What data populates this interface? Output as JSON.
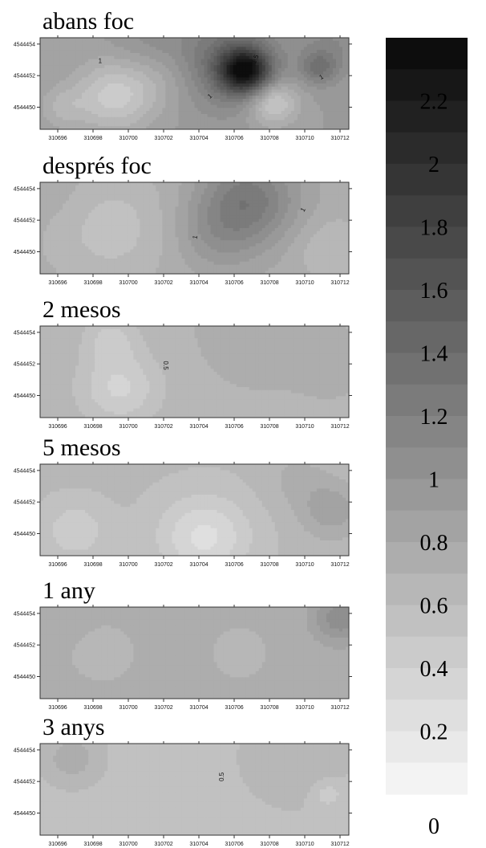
{
  "chart_data": {
    "type": "heatmap",
    "x_ticks": [
      "310696",
      "310698",
      "310700",
      "310702",
      "310704",
      "310706",
      "310708",
      "310710",
      "310712"
    ],
    "y_ticks": [
      "4544454",
      "4544452",
      "4544450"
    ],
    "colorbar": {
      "min": 0,
      "max": 2.4,
      "step": 0.1,
      "tick_labels": [
        "2.2",
        "2",
        "1.8",
        "1.6",
        "1.4",
        "1.2",
        "1",
        "0.8",
        "0.6",
        "0.4",
        "0.2",
        "0"
      ],
      "tick_values": [
        2.2,
        2.0,
        1.8,
        1.6,
        1.4,
        1.2,
        1.0,
        0.8,
        0.6,
        0.4,
        0.2,
        0.0
      ]
    },
    "panels": [
      {
        "title": "abans foc",
        "base": 0.9,
        "blobs": [
          {
            "x": 310706.6,
            "y": 4544452.3,
            "r": 1.4,
            "v": 1.25
          },
          {
            "x": 310705.5,
            "y": 4544452.9,
            "r": 3.0,
            "v": 0.45
          },
          {
            "x": 310710.8,
            "y": 4544452.5,
            "r": 1.0,
            "v": 0.35
          },
          {
            "x": 310711.5,
            "y": 4544453.8,
            "r": 2.0,
            "v": 0.2
          },
          {
            "x": 310699.2,
            "y": 4544450.7,
            "r": 2.2,
            "v": -0.45
          },
          {
            "x": 310708.2,
            "y": 4544450.3,
            "r": 1.4,
            "v": -0.5
          },
          {
            "x": 310696.3,
            "y": 4544450.0,
            "r": 1.3,
            "v": -0.2
          },
          {
            "x": 310702.0,
            "y": 4544451.8,
            "r": 2.0,
            "v": -0.15
          },
          {
            "x": 310701.0,
            "y": 4544454.3,
            "r": 2.0,
            "v": 0.12
          }
        ],
        "contour_labels": [
          {
            "text": "1",
            "x": 310698.4,
            "y": 4544452.8,
            "angle": 0
          },
          {
            "text": "1",
            "x": 310704.7,
            "y": 4544450.6,
            "angle": -40
          },
          {
            "text": "1.5",
            "x": 310707.3,
            "y": 4544453.0,
            "angle": -70
          },
          {
            "text": "1",
            "x": 310711.0,
            "y": 4544451.8,
            "angle": -30
          }
        ]
      },
      {
        "title": "després foc",
        "base": 0.75,
        "blobs": [
          {
            "x": 310706.8,
            "y": 4544453.3,
            "r": 2.8,
            "v": 0.5
          },
          {
            "x": 310705.0,
            "y": 4544451.0,
            "r": 2.4,
            "v": 0.2
          },
          {
            "x": 310699.0,
            "y": 4544451.5,
            "r": 3.5,
            "v": -0.2
          },
          {
            "x": 310711.5,
            "y": 4544450.2,
            "r": 2.0,
            "v": -0.15
          },
          {
            "x": 310696.0,
            "y": 4544453.5,
            "r": 2.0,
            "v": 0.05
          }
        ],
        "contour_labels": [
          {
            "text": "1",
            "x": 310703.9,
            "y": 4544450.9,
            "angle": -80
          },
          {
            "text": "1",
            "x": 310710.0,
            "y": 4544452.6,
            "angle": -60
          }
        ]
      },
      {
        "title": "2 mesos",
        "base": 0.68,
        "blobs": [
          {
            "x": 310699.5,
            "y": 4544450.5,
            "r": 2.3,
            "v": -0.3
          },
          {
            "x": 310699.0,
            "y": 4544453.6,
            "r": 1.5,
            "v": -0.2
          },
          {
            "x": 310707.5,
            "y": 4544454.2,
            "r": 3.0,
            "v": 0.1
          },
          {
            "x": 310711.5,
            "y": 4544452.0,
            "r": 2.0,
            "v": 0.06
          }
        ],
        "contour_labels": [
          {
            "text": "0.5",
            "x": 310702.0,
            "y": 4544451.9,
            "angle": 90
          }
        ]
      },
      {
        "title": "5 mesos",
        "base": 0.62,
        "blobs": [
          {
            "x": 310704.3,
            "y": 4544449.8,
            "r": 2.6,
            "v": -0.35
          },
          {
            "x": 310697.0,
            "y": 4544450.2,
            "r": 1.8,
            "v": -0.2
          },
          {
            "x": 310711.5,
            "y": 4544451.5,
            "r": 1.8,
            "v": 0.25
          },
          {
            "x": 310709.5,
            "y": 4544453.5,
            "r": 1.8,
            "v": 0.1
          }
        ],
        "contour_labels": []
      },
      {
        "title": "1 any",
        "base": 0.72,
        "blobs": [
          {
            "x": 310712.0,
            "y": 4544453.7,
            "r": 1.6,
            "v": 0.35
          },
          {
            "x": 310698.5,
            "y": 4544451.5,
            "r": 1.5,
            "v": -0.08
          },
          {
            "x": 310706.3,
            "y": 4544451.5,
            "r": 1.2,
            "v": -0.1
          },
          {
            "x": 310696.2,
            "y": 4544453.8,
            "r": 1.5,
            "v": 0.05
          }
        ],
        "contour_labels": []
      },
      {
        "title": "3 anys",
        "base": 0.58,
        "blobs": [
          {
            "x": 310696.8,
            "y": 4544453.5,
            "r": 1.4,
            "v": 0.2
          },
          {
            "x": 310709.5,
            "y": 4544453.5,
            "r": 2.5,
            "v": 0.12
          },
          {
            "x": 310702.5,
            "y": 4544450.5,
            "r": 2.0,
            "v": -0.08
          },
          {
            "x": 310711.3,
            "y": 4544451.2,
            "r": 0.9,
            "v": -0.15
          }
        ],
        "contour_labels": [
          {
            "text": "0.5",
            "x": 310705.4,
            "y": 4544452.3,
            "angle": -90
          }
        ]
      }
    ]
  }
}
